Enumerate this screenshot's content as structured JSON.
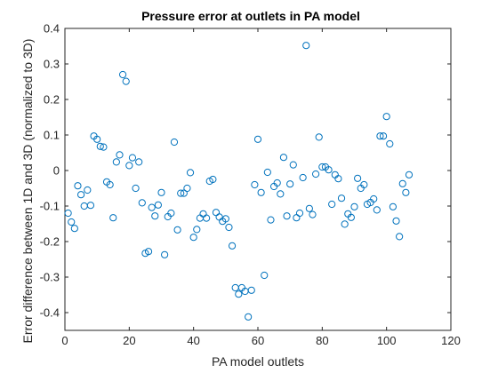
{
  "chart_data": {
    "type": "scatter",
    "title": "Pressure error at outlets in PA model",
    "xlabel": "PA model outlets",
    "ylabel": "Error difference between 1D and 3D (normalized to 3D)",
    "xlim": [
      0,
      120
    ],
    "ylim": [
      -0.45,
      0.4
    ],
    "xticks": [
      0,
      20,
      40,
      60,
      80,
      100,
      120
    ],
    "yticks": [
      -0.4,
      -0.3,
      -0.2,
      -0.1,
      0,
      0.1,
      0.2,
      0.3,
      0.4
    ],
    "xtick_labels": [
      "0",
      "20",
      "40",
      "60",
      "80",
      "100",
      "120"
    ],
    "ytick_labels": [
      "-0.4",
      "-0.3",
      "-0.2",
      "-0.1",
      "0",
      "0.1",
      "0.2",
      "0.3",
      "0.4"
    ],
    "grid": false,
    "marker": "open-circle",
    "marker_color": "#0072BD",
    "x": [
      1,
      2,
      3,
      4,
      5,
      6,
      7,
      8,
      9,
      10,
      11,
      12,
      13,
      14,
      15,
      16,
      17,
      18,
      19,
      20,
      21,
      22,
      23,
      24,
      25,
      26,
      27,
      28,
      29,
      30,
      31,
      32,
      33,
      34,
      35,
      36,
      37,
      38,
      39,
      40,
      41,
      42,
      43,
      44,
      45,
      46,
      47,
      48,
      49,
      50,
      51,
      52,
      53,
      54,
      55,
      56,
      57,
      58,
      59,
      60,
      61,
      62,
      63,
      64,
      65,
      66,
      67,
      68,
      69,
      70,
      71,
      72,
      73,
      74,
      75,
      76,
      77,
      78,
      79,
      80,
      81,
      82,
      83,
      84,
      85,
      86,
      87,
      88,
      89,
      90,
      91,
      92,
      93,
      94,
      95,
      96,
      97,
      98,
      99,
      100,
      101,
      102,
      103,
      104,
      105,
      106,
      107
    ],
    "y": [
      -0.12,
      -0.145,
      -0.163,
      -0.043,
      -0.068,
      -0.1,
      -0.055,
      -0.098,
      0.097,
      0.088,
      0.068,
      0.066,
      -0.032,
      -0.04,
      -0.133,
      0.024,
      0.044,
      0.27,
      0.251,
      0.014,
      0.036,
      -0.05,
      0.024,
      -0.091,
      -0.233,
      -0.228,
      -0.104,
      -0.128,
      -0.097,
      -0.062,
      -0.237,
      -0.13,
      -0.12,
      0.08,
      -0.167,
      -0.064,
      -0.064,
      -0.05,
      -0.006,
      -0.188,
      -0.166,
      -0.134,
      -0.122,
      -0.134,
      -0.03,
      -0.025,
      -0.118,
      -0.131,
      -0.143,
      -0.136,
      -0.16,
      -0.212,
      -0.33,
      -0.348,
      -0.33,
      -0.34,
      -0.412,
      -0.337,
      -0.04,
      0.088,
      -0.062,
      -0.295,
      -0.005,
      -0.139,
      -0.045,
      -0.035,
      -0.066,
      0.037,
      -0.128,
      -0.038,
      0.016,
      -0.133,
      -0.12,
      -0.02,
      0.352,
      -0.107,
      -0.124,
      -0.01,
      0.094,
      0.01,
      0.01,
      0.002,
      -0.095,
      -0.012,
      -0.023,
      -0.078,
      -0.151,
      -0.122,
      -0.132,
      -0.102,
      -0.022,
      -0.05,
      -0.04,
      -0.095,
      -0.09,
      -0.08,
      -0.111,
      0.097,
      0.097,
      0.152,
      0.075,
      -0.102,
      -0.142,
      -0.186,
      -0.037,
      -0.062,
      -0.012
    ]
  }
}
